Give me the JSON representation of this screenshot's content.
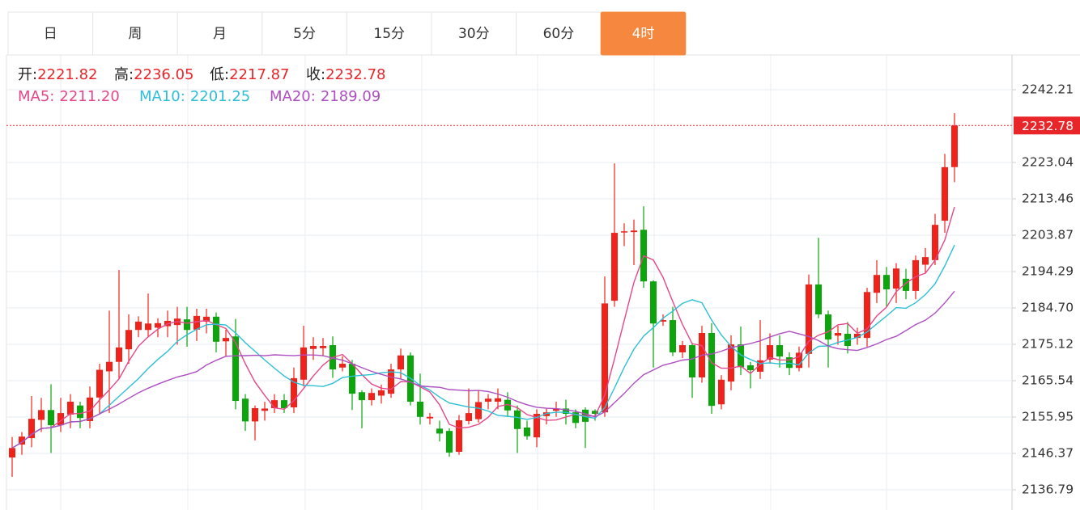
{
  "tabs": [
    "日",
    "周",
    "月",
    "5分",
    "15分",
    "30分",
    "60分",
    "4时"
  ],
  "active_tab": "4时",
  "chart_data": {
    "type": "candlestick",
    "info": [
      {
        "name": "开:",
        "path": "open"
      },
      {
        "name": "高:",
        "path": "high"
      },
      {
        "name": "低:",
        "path": "low"
      },
      {
        "name": "收:",
        "path": "close"
      }
    ],
    "ma": [
      {
        "name": "MA5:",
        "value": 2211.2,
        "label": "2211.20",
        "color": "#e5478a"
      },
      {
        "name": "MA10:",
        "value": 2201.25,
        "color": "#2dbfd6"
      },
      {
        "name": "MA20:",
        "value": 2189.09,
        "color": "#ad4fc0"
      }
    ],
    "up_color": "#f0231b",
    "down_color": "#0ca50c",
    "ylim": [
      2131.46,
      2251.37
    ],
    "yticks": [
      2242.21,
      2223.04,
      2213.46,
      2203.87,
      2194.29,
      {
        "value": 2184.7,
        "label": "2184.70"
      },
      2175.12,
      2165.54,
      2155.95,
      2146.37,
      2136.79
    ],
    "open": [
      2145.3,
      2148.7,
      2150.4,
      2155.2,
      2157.8,
      2153.8,
      2156.6,
      2159.0,
      2154.9,
      2161.1,
      2168.0,
      2170.5,
      2173.8,
      2178.9,
      2178.9,
      2179.5,
      2179.9,
      2180.2,
      2181.7,
      2179.0,
      2181.1,
      2182.4,
      2175.9,
      2177.2,
      2160.8,
      2154.8,
      2157.6,
      2158.3,
      2160.4,
      2158.5,
      2165.8,
      2173.9,
      2174.1,
      2174.9,
      2169.0,
      2170.0,
      2162.5,
      2160.4,
      2161.6,
      2162.1,
      2168.5,
      2172.2,
      2160.0,
      2155.6,
      2152.9,
      2152.3,
      2146.8,
      2154.9,
      2155.4,
      2160.0,
      2160.0,
      2160.5,
      2157.7,
      2153.2,
      2150.6,
      2156.2,
      2157.6,
      2158.2,
      2157.2,
      2157.9,
      2157.6,
      2157.2,
      2186.6,
      2204.7,
      2204.7,
      2205.3,
      2191.7,
      2181.1,
      2181.5,
      2173.0,
      2174.9,
      2166.4,
      2178.1,
      2159.3,
      2165.3,
      2175.1,
      2169.6,
      2167.9,
      2171.1,
      2174.9,
      2171.7,
      2168.9,
      2172.6,
      2190.9,
      2183.0,
      2177.4,
      2177.9,
      2176.8,
      2176.8,
      2188.7,
      2193.4,
      2189.8,
      2192.4,
      2189.2,
      2196.1,
      2197.3,
      2207.7,
      2221.82
    ],
    "high": [
      2150.7,
      2152.0,
      2161.5,
      2161.0,
      2164.6,
      2161.0,
      2162.0,
      2160.0,
      2164.0,
      2170.0,
      2184.0,
      2194.7,
      2183.0,
      2182.5,
      2188.5,
      2182.0,
      2184.0,
      2185.0,
      2185.0,
      2184.5,
      2184.5,
      2183.5,
      2179.0,
      2181.8,
      2162.0,
      2159.0,
      2160.0,
      2162.0,
      2162.0,
      2169.0,
      2180.0,
      2177.0,
      2176.8,
      2177.2,
      2172.0,
      2171.0,
      2163.0,
      2163.5,
      2164.5,
      2170.0,
      2174.0,
      2173.0,
      2167.4,
      2157.0,
      2155.0,
      2153.0,
      2156.5,
      2163.5,
      2163.0,
      2162.0,
      2163.5,
      2162.5,
      2159.0,
      2155.0,
      2158.0,
      2158.2,
      2160.0,
      2160.5,
      2158.0,
      2158.5,
      2158.0,
      2193.0,
      2222.8,
      2207.0,
      2208.0,
      2211.5,
      2192.0,
      2183.0,
      2185.0,
      2176.0,
      2175.5,
      2180.0,
      2180.7,
      2167.0,
      2177.5,
      2179.8,
      2170.5,
      2181.5,
      2178.0,
      2177.5,
      2173.0,
      2174.5,
      2193.5,
      2203.2,
      2184.0,
      2180.0,
      2181.0,
      2179.5,
      2190.0,
      2197.3,
      2195.5,
      2196.5,
      2195.0,
      2198.5,
      2200.5,
      2209.5,
      2225.3,
      2236.05
    ],
    "low": [
      2140.2,
      2146.0,
      2148.0,
      2152.0,
      2146.5,
      2152.0,
      2153.0,
      2153.0,
      2153.0,
      2156.6,
      2157.0,
      2166.0,
      2170.0,
      2177.0,
      2177.0,
      2177.0,
      2177.0,
      2175.0,
      2174.5,
      2176.0,
      2178.0,
      2173.0,
      2172.0,
      2158.0,
      2152.3,
      2149.8,
      2155.0,
      2157.0,
      2157.0,
      2157.0,
      2164.0,
      2171.0,
      2172.0,
      2166.3,
      2168.0,
      2157.8,
      2153.0,
      2159.0,
      2159.5,
      2161.0,
      2166.0,
      2159.0,
      2154.0,
      2154.0,
      2149.5,
      2145.5,
      2146.0,
      2154.0,
      2154.5,
      2158.0,
      2158.0,
      2156.0,
      2146.5,
      2150.0,
      2148.0,
      2154.0,
      2156.0,
      2154.0,
      2153.0,
      2147.8,
      2155.0,
      2156.0,
      2185.0,
      2201.0,
      2196.0,
      2190.0,
      2169.0,
      2180.0,
      2172.0,
      2171.5,
      2161.0,
      2165.0,
      2156.8,
      2158.0,
      2163.0,
      2167.0,
      2163.5,
      2166.0,
      2170.0,
      2169.0,
      2167.0,
      2168.0,
      2169.0,
      2182.0,
      2169.0,
      2175.0,
      2172.7,
      2175.0,
      2174.5,
      2186.0,
      2185.0,
      2186.0,
      2187.0,
      2187.0,
      2194.0,
      2196.0,
      2204.5,
      2217.87
    ],
    "close": [
      2147.8,
      2150.8,
      2155.5,
      2157.8,
      2153.8,
      2157.0,
      2160.0,
      2155.7,
      2161.1,
      2168.4,
      2170.5,
      2174.3,
      2178.9,
      2181.1,
      2180.6,
      2180.7,
      2181.3,
      2181.9,
      2178.9,
      2182.6,
      2182.4,
      2175.8,
      2176.8,
      2160.2,
      2154.8,
      2158.3,
      2158.2,
      2160.4,
      2158.3,
      2166.2,
      2174.3,
      2174.7,
      2174.7,
      2168.5,
      2170.0,
      2162.1,
      2160.4,
      2162.3,
      2163.0,
      2168.5,
      2172.2,
      2160.0,
      2156.0,
      2156.0,
      2151.6,
      2146.6,
      2155.1,
      2157.0,
      2159.9,
      2160.8,
      2160.9,
      2157.7,
      2152.8,
      2150.9,
      2156.8,
      2157.2,
      2158.2,
      2156.8,
      2154.4,
      2154.7,
      2156.8,
      2185.9,
      2204.5,
      2204.9,
      2205.1,
      2191.7,
      2180.6,
      2181.5,
      2173.0,
      2174.9,
      2166.4,
      2178.1,
      2158.9,
      2165.8,
      2175.1,
      2169.1,
      2168.3,
      2170.9,
      2174.9,
      2171.9,
      2168.9,
      2172.9,
      2190.9,
      2183.0,
      2176.4,
      2178.1,
      2174.7,
      2177.9,
      2188.9,
      2193.4,
      2189.6,
      2195.1,
      2189.2,
      2197.3,
      2198.1,
      2206.6,
      2221.8,
      2232.78
    ]
  }
}
